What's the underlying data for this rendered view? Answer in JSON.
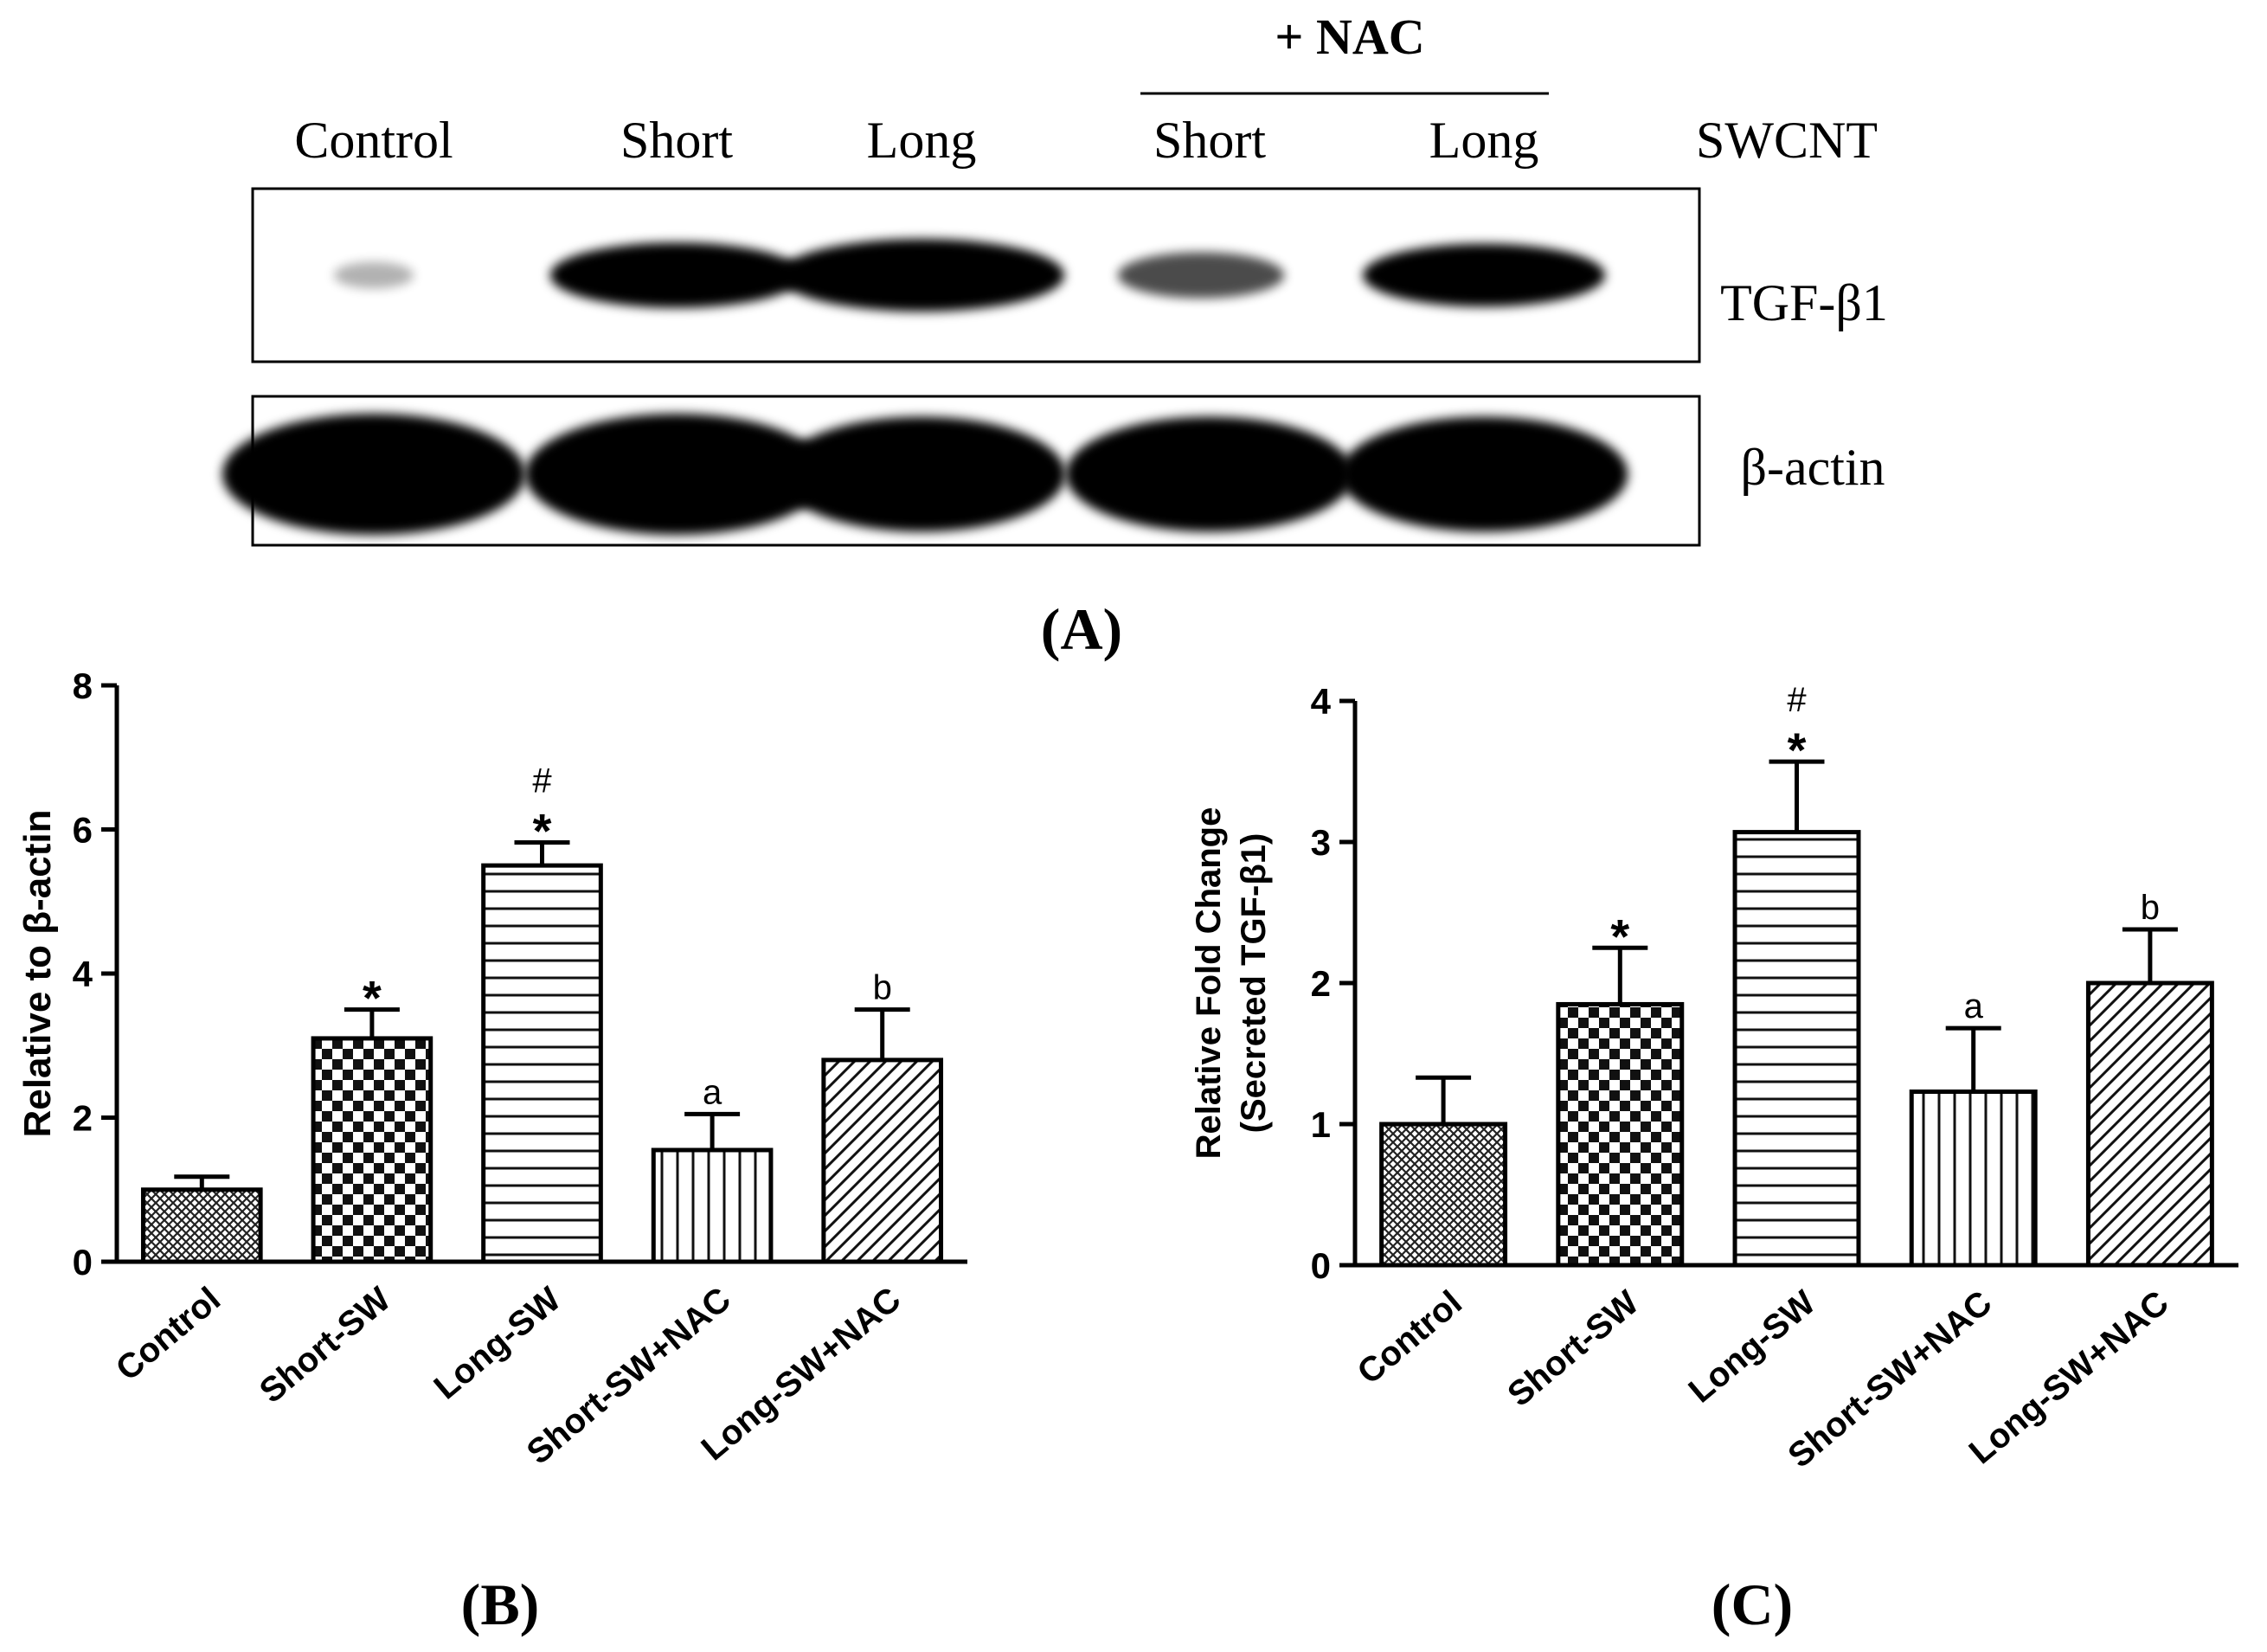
{
  "panel_a": {
    "label": "(A)",
    "nac_header": "+ NAC",
    "lanes": [
      "Control",
      "Short",
      "Long",
      "Short",
      "Long"
    ],
    "swcnt_label": "SWCNT",
    "blot_labels": [
      "TGF-β1",
      "β-actin"
    ],
    "band_intensity": {
      "tgf_b1": [
        0.05,
        0.85,
        1.0,
        0.45,
        0.8
      ],
      "b_actin": [
        1.0,
        1.0,
        0.95,
        0.95,
        0.95
      ]
    }
  },
  "chart_data": [
    {
      "type": "bar",
      "panel_label": "(B)",
      "ylabel": "Relative to β-actin",
      "categories": [
        "Control",
        "Short-SW",
        "Long-SW",
        "Short-SW+NAC",
        "Long-SW+NAC"
      ],
      "values": [
        1.0,
        3.1,
        5.5,
        1.55,
        2.8
      ],
      "errors": [
        0.18,
        0.4,
        0.32,
        0.5,
        0.7
      ],
      "annotations": [
        [],
        [
          "*"
        ],
        [
          "#",
          "*"
        ],
        [
          "a"
        ],
        [
          "b"
        ]
      ],
      "patterns": [
        "crosshatch",
        "checker",
        "hlines",
        "vlines",
        "diag"
      ],
      "ylim": [
        0,
        8
      ],
      "yticks": [
        0,
        2,
        4,
        6,
        8
      ]
    },
    {
      "type": "bar",
      "panel_label": "(C)",
      "ylabel": [
        "Relative Fold Change",
        "(Secreted TGF-β1)"
      ],
      "categories": [
        "Control",
        "Short-SW",
        "Long-SW",
        "Short-SW+NAC",
        "Long-SW+NAC"
      ],
      "values": [
        1.0,
        1.85,
        3.07,
        1.23,
        2.0
      ],
      "errors": [
        0.33,
        0.4,
        0.5,
        0.45,
        0.38
      ],
      "annotations": [
        [],
        [
          "*"
        ],
        [
          "#",
          "*"
        ],
        [
          "a"
        ],
        [
          "b"
        ]
      ],
      "patterns": [
        "crosshatch",
        "checker",
        "hlines",
        "vlines",
        "diag"
      ],
      "ylim": [
        0,
        4
      ],
      "yticks": [
        0,
        1,
        2,
        3,
        4
      ]
    }
  ]
}
